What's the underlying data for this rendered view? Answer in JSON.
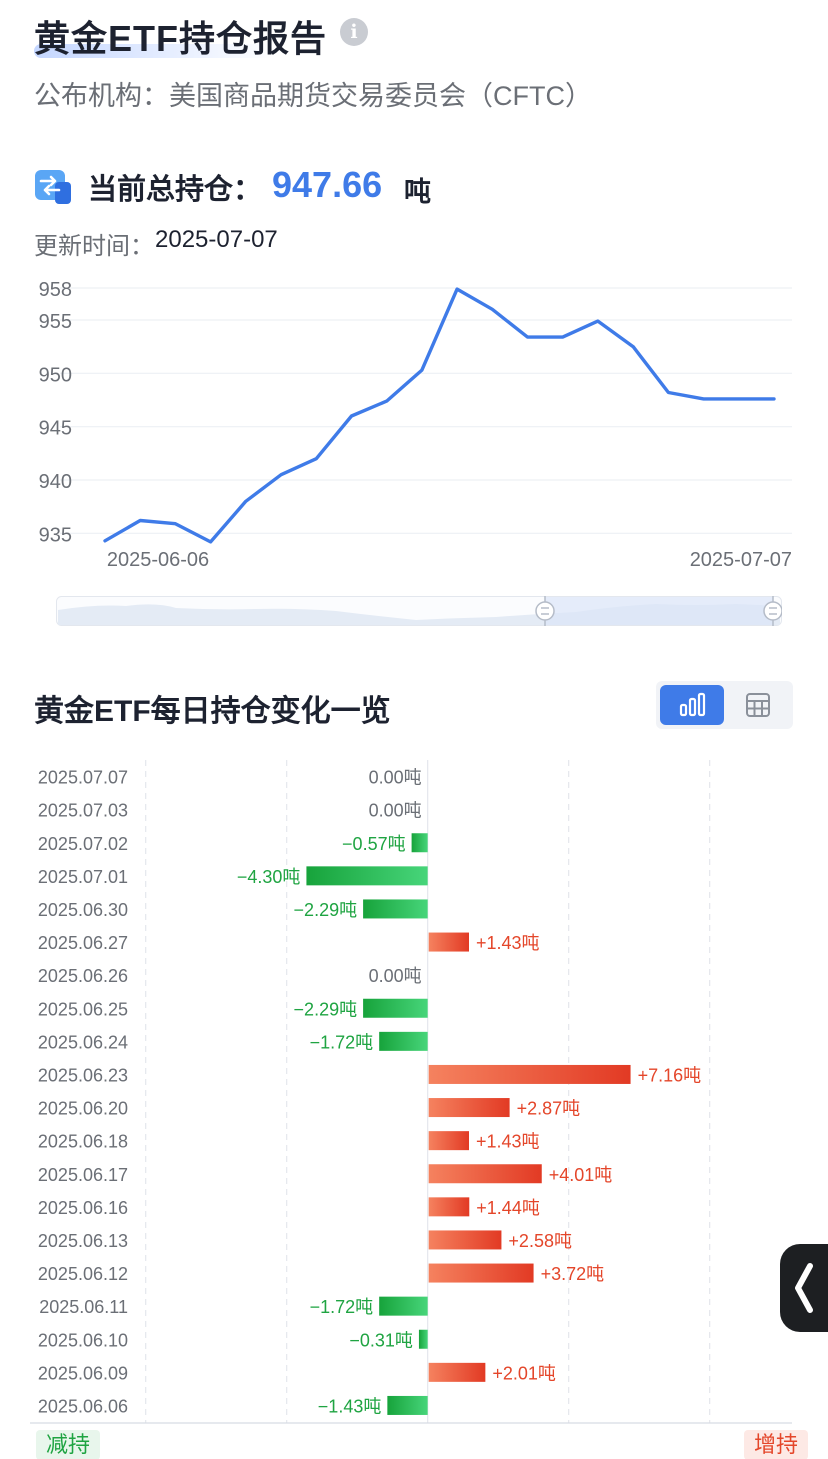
{
  "header": {
    "title": "黄金ETF持仓报告",
    "publisher": "公布机构：美国商品期货交易委员会（CFTC）"
  },
  "holding": {
    "label": "当前总持仓：",
    "value": "947.66",
    "unit": "吨",
    "update_label": "更新时间：",
    "update_value": "2025-07-07"
  },
  "section": {
    "title": "黄金ETF每日持仓变化一览"
  },
  "legend": {
    "decrease": "减持",
    "increase": "增持"
  },
  "colors": {
    "accent": "#3f7be8",
    "increase": "#e4462a",
    "decrease": "#1fa442",
    "text_dark": "#1d2230",
    "text_grey": "#6b6f76"
  },
  "chart_data": [
    {
      "type": "line",
      "x_tick_labels": [
        "2025-06-06",
        "2025-07-07"
      ],
      "yticks": [
        935,
        940,
        945,
        950,
        955,
        958
      ],
      "ylim": [
        934,
        958
      ],
      "grid": true,
      "series": [
        {
          "values": [
            934.3,
            936.2,
            935.9,
            934.2,
            938.0,
            940.5,
            942.0,
            946.0,
            947.4,
            950.3,
            957.9,
            956.0,
            953.4,
            953.4,
            954.9,
            952.5,
            948.2,
            947.6,
            947.6,
            947.6
          ]
        }
      ]
    },
    {
      "type": "bar",
      "orientation": "horizontal",
      "categories": [
        "2025.07.07",
        "2025.07.03",
        "2025.07.02",
        "2025.07.01",
        "2025.06.30",
        "2025.06.27",
        "2025.06.26",
        "2025.06.25",
        "2025.06.24",
        "2025.06.23",
        "2025.06.20",
        "2025.06.18",
        "2025.06.17",
        "2025.06.16",
        "2025.06.13",
        "2025.06.12",
        "2025.06.11",
        "2025.06.10",
        "2025.06.09",
        "2025.06.06"
      ],
      "values": [
        0.0,
        0.0,
        -0.57,
        -4.3,
        -2.29,
        1.43,
        0.0,
        -2.29,
        -1.72,
        7.16,
        2.87,
        1.43,
        4.01,
        1.44,
        2.58,
        3.72,
        -1.72,
        -0.31,
        2.01,
        -1.43
      ],
      "data_labels": [
        "0.00吨",
        "0.00吨",
        "−0.57吨",
        "−4.30吨",
        "−2.29吨",
        "+1.43吨",
        "0.00吨",
        "−2.29吨",
        "−1.72吨",
        "+7.16吨",
        "+2.87吨",
        "+1.43吨",
        "+4.01吨",
        "+1.44吨",
        "+2.58吨",
        "+3.72吨",
        "−1.72吨",
        "−0.31吨",
        "+2.01吨",
        "−1.43吨"
      ],
      "xticks": [
        -10,
        -5,
        0,
        5,
        10
      ],
      "xtick_labels": [
        "−10",
        "−5",
        "0",
        "5",
        "10"
      ],
      "xlim": [
        -10.06,
        12.92
      ],
      "grid": true
    }
  ]
}
